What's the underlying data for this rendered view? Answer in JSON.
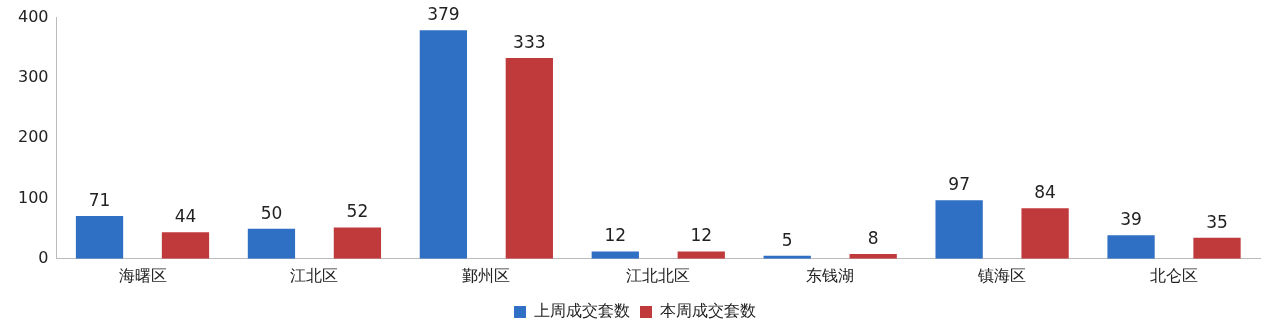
{
  "chart_data": {
    "type": "bar",
    "categories": [
      "海曙区",
      "江北区",
      "鄞州区",
      "江北北区",
      "东钱湖",
      "镇海区",
      "北仑区"
    ],
    "series": [
      {
        "name": "上周成交套数",
        "color": "#2f6fc4",
        "values": [
          71,
          50,
          379,
          12,
          5,
          97,
          39
        ]
      },
      {
        "name": "本周成交套数",
        "color": "#c0393b",
        "values": [
          44,
          52,
          333,
          12,
          8,
          84,
          35
        ]
      }
    ],
    "ylim": [
      0,
      400
    ],
    "yticks": [
      0,
      100,
      200,
      300,
      400
    ],
    "grid": false,
    "legend": "bottom",
    "data_labels": true
  }
}
